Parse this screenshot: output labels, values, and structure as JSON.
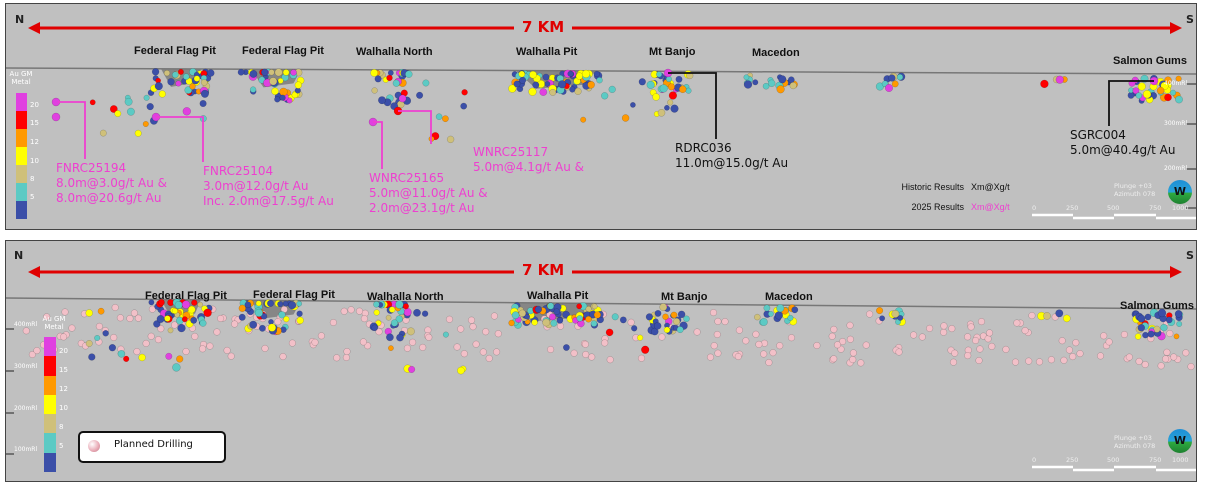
{
  "colors": {
    "accent_red": "#e00000",
    "annotation_pink": "#ee3fd0",
    "planned": "#f2c0c8",
    "grade_scale": [
      "#e040e0",
      "#ff0000",
      "#ff9900",
      "#ffff00",
      "#cfc07a",
      "#5ccac4",
      "#3b4fa8"
    ]
  },
  "top": {
    "north": "N",
    "south": "S",
    "distance": "7 KM",
    "pits": [
      "Federal Flag Pit",
      "Federal Flag  Pit",
      "Walhalla North",
      "Walhalla Pit",
      "Mt Banjo",
      "Macedon",
      "Salmon Gums"
    ],
    "legend": {
      "title": "Au GM Metal",
      "ticks": [
        "20",
        "15",
        "12",
        "10",
        "8",
        "5"
      ]
    },
    "elevations": [
      "400mRl",
      "300mRl",
      "200mRl"
    ],
    "annotations": [
      {
        "hole": "FNRC25194",
        "lines": [
          "8.0m@3.0g/t Au &",
          "8.0m@20.6g/t Au"
        ]
      },
      {
        "hole": "FNRC25104",
        "lines": [
          "3.0m@12.0g/t Au",
          "Inc. 2.0m@17.5g/t Au"
        ]
      },
      {
        "hole": "WNRC25165",
        "lines": [
          "5.0m@11.0g/t Au &",
          "2.0m@23.1g/t Au"
        ]
      },
      {
        "hole": "WNRC25117",
        "lines": [
          "5.0m@4.1g/t Au &"
        ]
      },
      {
        "hole": "RDRC036",
        "lines": [
          "11.0m@15.0g/t Au"
        ]
      },
      {
        "hole": "SGRC004",
        "lines": [
          "5.0m@40.4g/t Au"
        ]
      }
    ],
    "key": {
      "historic_label": "Historic Results",
      "historic_value": "Xm@Xg/t",
      "new_label": "2025 Results",
      "new_value": "Xm@Xg/t"
    },
    "view": {
      "plunge": "Plunge +03",
      "azimuth": "Azimuth 078",
      "compass": "W"
    },
    "scale": [
      "0",
      "250",
      "500",
      "750",
      "1000"
    ]
  },
  "bottom": {
    "north": "N",
    "south": "S",
    "distance": "7 KM",
    "pits": [
      "Federal Flag Pit",
      "Federal Flag  Pit",
      "Walhalla North",
      "Walhalla Pit",
      "Mt Banjo",
      "Macedon",
      "Salmon Gums"
    ],
    "legend": {
      "title": "Au GM Metal",
      "ticks": [
        "20",
        "15",
        "12",
        "10",
        "8",
        "5"
      ]
    },
    "elevations": [
      "400mRl",
      "300mRl",
      "200mRl",
      "100mRl"
    ],
    "planned_label": "Planned Drilling",
    "view": {
      "plunge": "Plunge +03",
      "azimuth": "Azimuth 078",
      "compass": "W"
    },
    "scale": [
      "0",
      "250",
      "500",
      "750",
      "1000"
    ]
  }
}
